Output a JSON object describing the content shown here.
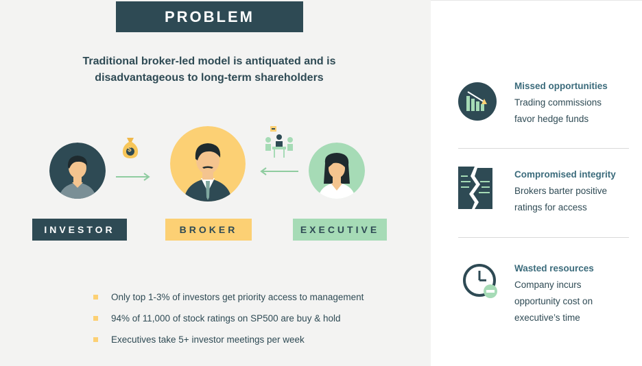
{
  "title": "PROBLEM",
  "subtitle_line1": "Traditional broker-led model is antiquated and is",
  "subtitle_line2": "disadvantageous to long-term shareholders",
  "roles": {
    "investor": "INVESTOR",
    "broker": "BROKER",
    "executive": "EXECUTIVE"
  },
  "bullets": [
    "Only top 1-3% of investors get priority access to management",
    "94% of 11,000 of stock ratings on SP500 are buy & hold",
    "Executives take 5+ investor meetings per week"
  ],
  "issues": [
    {
      "title": "Missed opportunities",
      "line1": "Trading commissions",
      "line2": "favor hedge funds",
      "line3": "",
      "icon": "declining-chart-icon"
    },
    {
      "title": "Compromised integrity",
      "line1": "Brokers barter positive",
      "line2": "ratings for access",
      "line3": "",
      "icon": "torn-document-icon"
    },
    {
      "title": "Wasted resources",
      "line1": "Company incurs",
      "line2": "opportunity cost on",
      "line3": "executive’s time",
      "icon": "clock-minus-icon"
    }
  ],
  "colors": {
    "navy": "#2e4a54",
    "yellow": "#fcd074",
    "mint": "#a6dbb6",
    "teal_text": "#3b6b7b"
  },
  "money_bag_symbol": "$"
}
